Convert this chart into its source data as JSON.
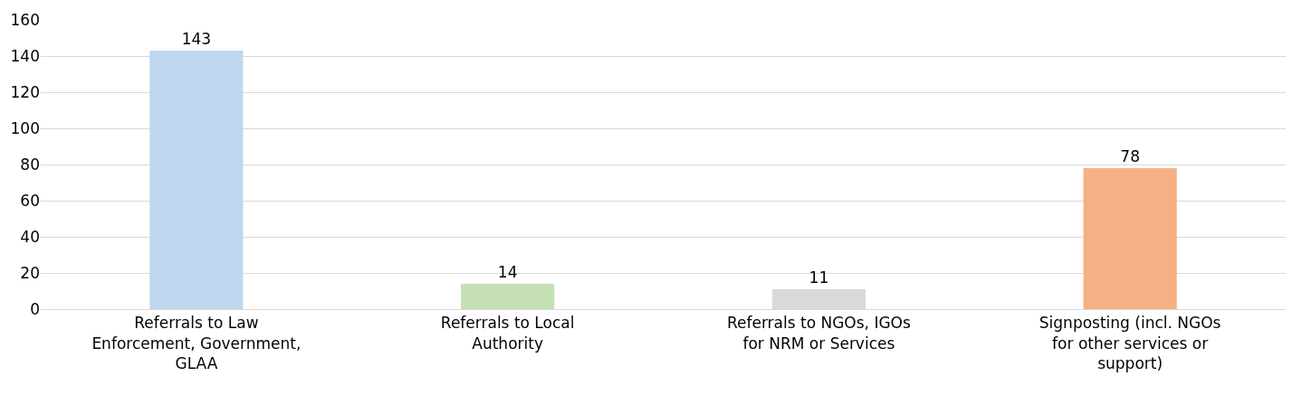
{
  "chart_data": {
    "type": "bar",
    "categories": [
      "Referrals to Law Enforcement, Government, GLAA",
      "Referrals to Local Authority",
      "Referrals to NGOs, IGOs for NRM or Services",
      "Signposting (incl. NGOs for other services or support)"
    ],
    "values": [
      143,
      14,
      11,
      78
    ],
    "colors": [
      "#bdd7ee",
      "#c5e0b4",
      "#d9d9d9",
      "#f4b183"
    ],
    "ylim": [
      0,
      160
    ],
    "yticks": [
      0,
      20,
      40,
      60,
      80,
      100,
      120,
      140,
      160
    ],
    "grid": "y",
    "data_labels": true
  }
}
